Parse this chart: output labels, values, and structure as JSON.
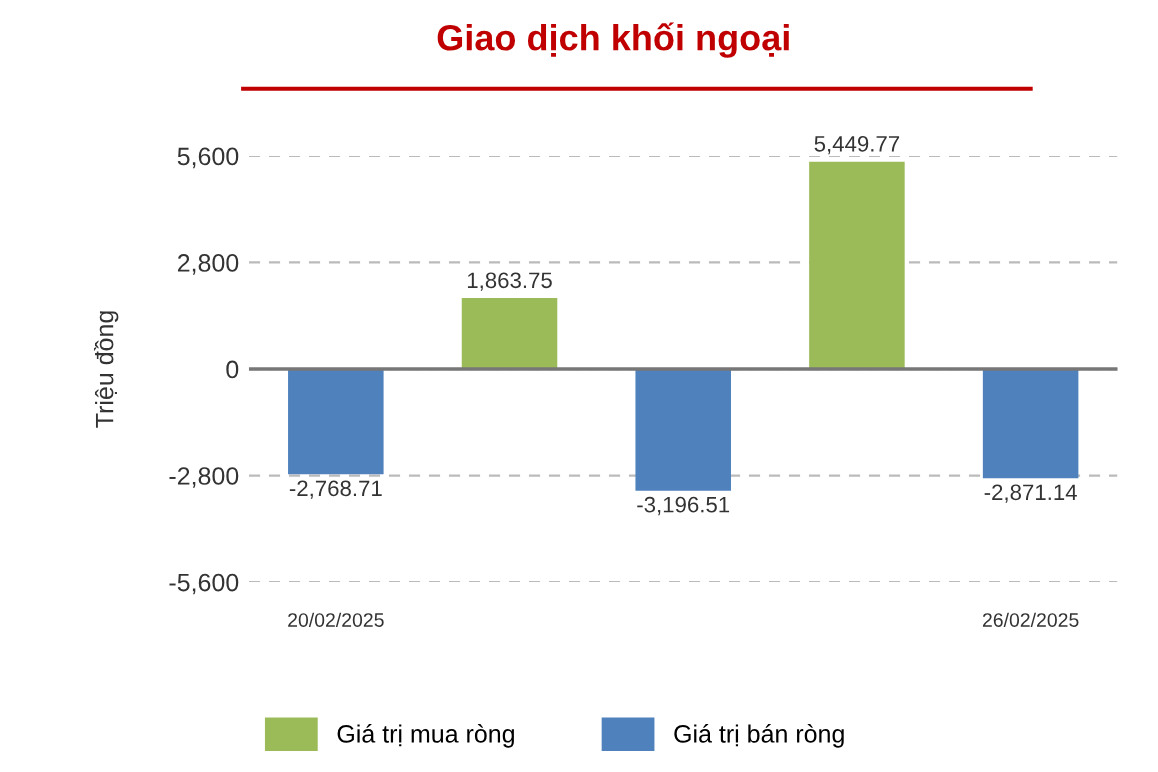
{
  "chart_data": {
    "type": "bar",
    "title": "Giao dịch khối ngoại",
    "ylabel": "Triệu đồng",
    "categories": [
      "20/02/2025",
      null,
      null,
      null,
      "26/02/2025"
    ],
    "series": [
      {
        "name": "Giá trị mua ròng",
        "color": "#9bbb59",
        "values": [
          null,
          1863.75,
          null,
          5449.77,
          null
        ],
        "value_labels": [
          null,
          "1,863.75",
          null,
          "5,449.77",
          null
        ]
      },
      {
        "name": "Giá trị bán ròng",
        "color": "#4f81bd",
        "values": [
          -2768.71,
          null,
          -3196.51,
          null,
          -2871.14
        ],
        "value_labels": [
          "-2,768.71",
          null,
          "-3,196.51",
          null,
          "-2,871.14"
        ]
      }
    ],
    "ylim": [
      -5600,
      5600
    ],
    "yticks": [
      {
        "value": 5600,
        "label": "5,600"
      },
      {
        "value": 2800,
        "label": "2,800"
      },
      0,
      {
        "value": -2800,
        "label": "-2,800"
      },
      {
        "value": -5600,
        "label": "-5,600"
      }
    ],
    "grid": "y",
    "legend": "bottom"
  }
}
